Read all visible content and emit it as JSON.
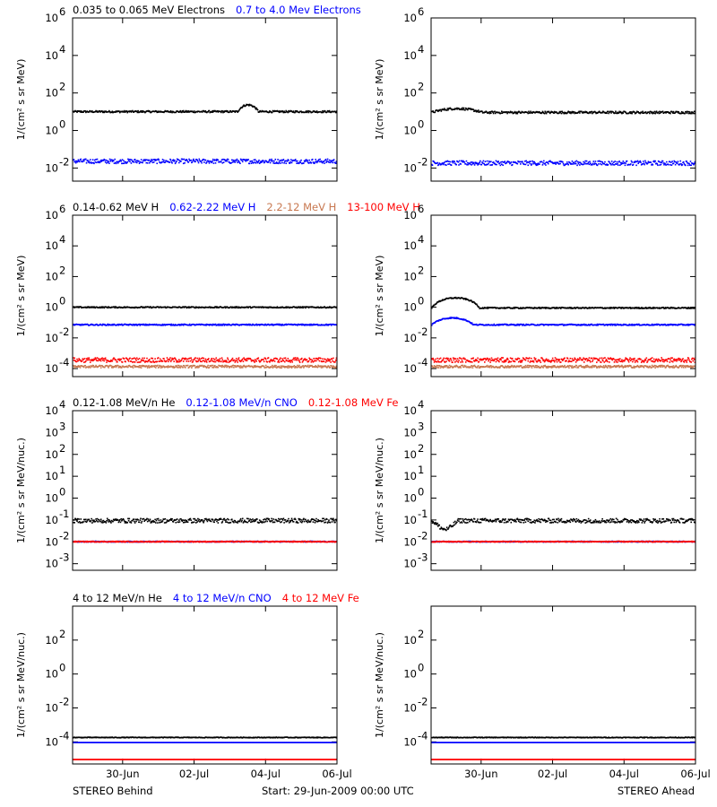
{
  "footer": {
    "left": "STEREO Behind",
    "center": "Start: 29-Jun-2009 00:00 UTC",
    "right": "STEREO Ahead"
  },
  "colors": {
    "black": "#000000",
    "blue": "#0000ff",
    "tan": "#c87850",
    "red": "#ff0000"
  },
  "x_ticks": [
    "30-Jun",
    "02-Jul",
    "04-Jul",
    "06-Jul"
  ],
  "x_tick_days": [
    1,
    3,
    5,
    7
  ],
  "x_range_days": [
    -0.4,
    7.0
  ],
  "chart_data": [
    {
      "type": "scatter",
      "row": "electrons",
      "spacecraft": "STEREO Behind",
      "legend": [
        {
          "name": "0.035 to 0.065 MeV Electrons",
          "color": "#000000"
        },
        {
          "name": "0.7 to 4.0 Mev Electrons",
          "color": "#0000ff"
        }
      ],
      "ylabel": "1/(cm² s sr MeV)",
      "yscale": "log",
      "ylim": [
        0.002,
        1000000
      ],
      "ytick_labels": [
        "10^-2",
        "10^0",
        "10^2",
        "10^4",
        "10^6"
      ],
      "series": [
        {
          "name": "0.035 to 0.065 MeV Electrons",
          "color": "#000000",
          "level": 11,
          "spread": 0.05,
          "features": [
            {
              "start": 4.2,
              "end": 4.9,
              "peak": 2.3
            }
          ]
        },
        {
          "name": "0.7 to 4.0 Mev Electrons",
          "color": "#0000ff",
          "level": 0.025,
          "spread": 0.12,
          "features": []
        }
      ]
    },
    {
      "type": "scatter",
      "row": "electrons",
      "spacecraft": "STEREO Ahead",
      "ylabel": "1/(cm² s sr MeV)",
      "yscale": "log",
      "ylim": [
        0.002,
        1000000
      ],
      "ytick_labels": [
        "10^-2",
        "10^0",
        "10^2",
        "10^4",
        "10^6"
      ],
      "series": [
        {
          "name": "0.035 to 0.065 MeV Electrons",
          "color": "#000000",
          "level": 10,
          "spread": 0.06,
          "features": [
            {
              "start": -0.4,
              "end": 1.3,
              "peak": 1.6
            }
          ]
        },
        {
          "name": "0.7 to 4.0 Mev Electrons",
          "color": "#0000ff",
          "level": 0.02,
          "spread": 0.12,
          "features": []
        }
      ]
    },
    {
      "type": "scatter",
      "row": "protons",
      "spacecraft": "STEREO Behind",
      "legend": [
        {
          "name": "0.14-0.62 MeV H",
          "color": "#000000"
        },
        {
          "name": "0.62-2.22 MeV H",
          "color": "#0000ff"
        },
        {
          "name": "2.2-12 MeV H",
          "color": "#c87850"
        },
        {
          "name": "13-100 MeV H",
          "color": "#ff0000"
        }
      ],
      "ylabel": "1/(cm² s sr MeV)",
      "yscale": "log",
      "ylim": [
        3e-05,
        1000000
      ],
      "ytick_labels": [
        "10^-4",
        "10^-2",
        "10^0",
        "10^2",
        "10^4",
        "10^6"
      ],
      "series": [
        {
          "name": "0.14-0.62 MeV H",
          "color": "#000000",
          "level": 1.1,
          "spread": 0.04,
          "features": []
        },
        {
          "name": "0.62-2.22 MeV H",
          "color": "#0000ff",
          "level": 0.08,
          "spread": 0.04,
          "features": []
        },
        {
          "name": "2.2-12 MeV H",
          "color": "#c87850",
          "level": 0.00015,
          "spread": 0.08,
          "features": []
        },
        {
          "name": "13-100 MeV H",
          "color": "#ff0000",
          "level": 0.0004,
          "spread": 0.15,
          "features": []
        }
      ]
    },
    {
      "type": "scatter",
      "row": "protons",
      "spacecraft": "STEREO Ahead",
      "ylabel": "1/(cm² s sr MeV)",
      "yscale": "log",
      "ylim": [
        3e-05,
        1000000
      ],
      "ytick_labels": [
        "10^-4",
        "10^-2",
        "10^0",
        "10^2",
        "10^4",
        "10^6"
      ],
      "series": [
        {
          "name": "0.14-0.62 MeV H",
          "color": "#000000",
          "level": 1.0,
          "spread": 0.04,
          "features": [
            {
              "start": -0.4,
              "end": 1.2,
              "peak": 4.5
            }
          ]
        },
        {
          "name": "0.62-2.22 MeV H",
          "color": "#0000ff",
          "level": 0.08,
          "spread": 0.04,
          "features": [
            {
              "start": -0.4,
              "end": 1.0,
              "peak": 2.8
            }
          ]
        },
        {
          "name": "2.2-12 MeV H",
          "color": "#c87850",
          "level": 0.00015,
          "spread": 0.08,
          "features": []
        },
        {
          "name": "13-100 MeV H",
          "color": "#ff0000",
          "level": 0.0004,
          "spread": 0.15,
          "features": []
        }
      ]
    },
    {
      "type": "scatter",
      "row": "heavy-low",
      "spacecraft": "STEREO Behind",
      "legend": [
        {
          "name": "0.12-1.08 MeV/n He",
          "color": "#000000"
        },
        {
          "name": "0.12-1.08 MeV/n CNO",
          "color": "#0000ff"
        },
        {
          "name": "0.12-1.08 MeV Fe",
          "color": "#ff0000"
        }
      ],
      "ylabel": "1/(cm² s sr MeV/nuc.)",
      "yscale": "log",
      "ylim": [
        0.0005,
        10000
      ],
      "ytick_labels": [
        "10^-3",
        "10^-2",
        "10^-1",
        "10^0",
        "10^1",
        "10^2",
        "10^3",
        "10^4"
      ],
      "series": [
        {
          "name": "0.12-1.08 MeV/n He",
          "color": "#000000",
          "level": 0.1,
          "spread": 0.1,
          "features": []
        },
        {
          "name": "0.12-1.08 MeV/n CNO",
          "color": "#0000ff",
          "level": 0.011,
          "spread": 0.02,
          "features": []
        },
        {
          "name": "0.12-1.08 MeV Fe",
          "color": "#ff0000",
          "level": 0.011,
          "spread": 0.02,
          "features": []
        }
      ]
    },
    {
      "type": "scatter",
      "row": "heavy-low",
      "spacecraft": "STEREO Ahead",
      "ylabel": "1/(cm² s sr MeV/nuc.)",
      "yscale": "log",
      "ylim": [
        0.0005,
        10000
      ],
      "ytick_labels": [
        "10^-3",
        "10^-2",
        "10^-1",
        "10^0",
        "10^1",
        "10^2",
        "10^3",
        "10^4"
      ],
      "series": [
        {
          "name": "0.12-1.08 MeV/n He",
          "color": "#000000",
          "level": 0.1,
          "spread": 0.1,
          "features": [
            {
              "start": -0.4,
              "end": 0.5,
              "peak": 0.4
            }
          ]
        },
        {
          "name": "0.12-1.08 MeV/n CNO",
          "color": "#0000ff",
          "level": 0.011,
          "spread": 0.02,
          "features": []
        },
        {
          "name": "0.12-1.08 MeV Fe",
          "color": "#ff0000",
          "level": 0.011,
          "spread": 0.02,
          "features": []
        }
      ]
    },
    {
      "type": "scatter",
      "row": "heavy-high",
      "spacecraft": "STEREO Behind",
      "legend": [
        {
          "name": "4 to 12 MeV/n He",
          "color": "#000000"
        },
        {
          "name": "4 to 12 MeV/n CNO",
          "color": "#0000ff"
        },
        {
          "name": "4 to 12 MeV Fe",
          "color": "#ff0000"
        }
      ],
      "ylabel": "1/(cm² s sr MeV/nuc.)",
      "yscale": "log",
      "ylim": [
        5e-06,
        10000
      ],
      "ytick_labels": [
        "10^-4",
        "10^-2",
        "10^0",
        "10^2"
      ],
      "series": [
        {
          "name": "4 to 12 MeV/n He",
          "color": "#000000",
          "level": 0.0002,
          "spread": 0.02,
          "features": []
        },
        {
          "name": "4 to 12 MeV/n CNO",
          "color": "#0000ff",
          "level": 0.0001,
          "spread": 0.0,
          "features": []
        },
        {
          "name": "4 to 12 MeV Fe",
          "color": "#ff0000",
          "level": 1e-05,
          "spread": 0.0,
          "features": []
        }
      ]
    },
    {
      "type": "scatter",
      "row": "heavy-high",
      "spacecraft": "STEREO Ahead",
      "ylabel": "1/(cm² s sr MeV/nuc.)",
      "yscale": "log",
      "ylim": [
        5e-06,
        10000
      ],
      "ytick_labels": [
        "10^-4",
        "10^-2",
        "10^0",
        "10^2"
      ],
      "series": [
        {
          "name": "4 to 12 MeV/n He",
          "color": "#000000",
          "level": 0.0002,
          "spread": 0.02,
          "features": []
        },
        {
          "name": "4 to 12 MeV/n CNO",
          "color": "#0000ff",
          "level": 0.0001,
          "spread": 0.0,
          "features": []
        },
        {
          "name": "4 to 12 MeV Fe",
          "color": "#ff0000",
          "level": 1e-05,
          "spread": 0.0,
          "features": []
        }
      ]
    }
  ]
}
